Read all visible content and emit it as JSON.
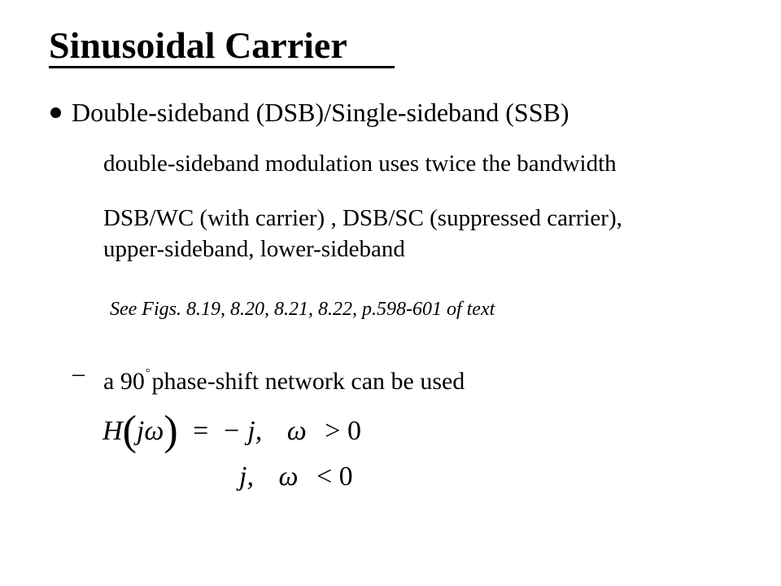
{
  "slide": {
    "title": "Sinusoidal Carrier",
    "bullet": "Double-sideband (DSB)/Single-sideband (SSB)",
    "line1": "double-sideband modulation uses twice the bandwidth",
    "line2a": "DSB/WC (with carrier) , DSB/SC (suppressed carrier),",
    "line2b": "upper-sideband, lower-sideband",
    "note": "See Figs. 8.19, 8.20, 8.21, 8.22, p.598-601 of text",
    "dash": "–",
    "dash_text_a": "a 90",
    "dash_degree": "°",
    "dash_text_b": "phase-shift network can be used"
  },
  "equation": {
    "H": "H",
    "lparen": "(",
    "arg": "jω",
    "rparen": ")",
    "equals": "=",
    "case1_value": "− j,",
    "case1_var": "ω",
    "case1_cond": "> 0",
    "case2_value": "j,",
    "case2_var": "ω",
    "case2_cond": "< 0"
  }
}
